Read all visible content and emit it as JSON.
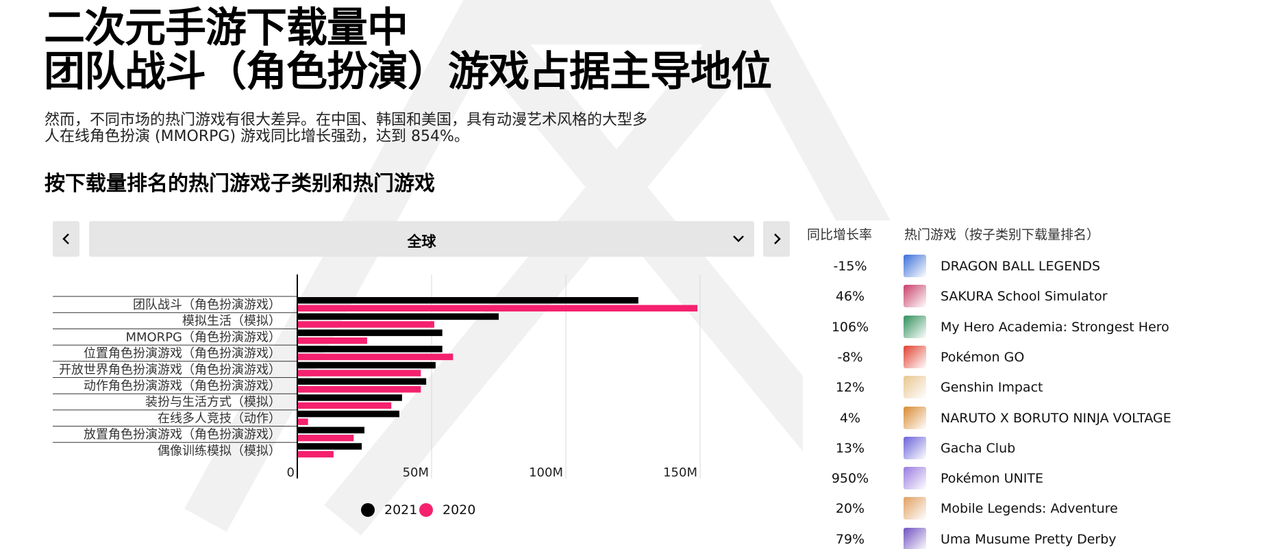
{
  "header": {
    "title_lines": [
      "二次元手游下载量中",
      "团队战斗（角色扮演）游戏占据主导地位"
    ],
    "subtitle_lines": [
      "然而，不同市场的热门游戏有很大差异。在中国、韩国和美国，具有动漫艺术风格的大型多",
      "人在线角色扮演 (MMORPG) 游戏同比增长强劲，达到 854%。"
    ],
    "section_title": "按下载量排名的热门游戏子类别和热门游戏"
  },
  "nav": {
    "region": "全球"
  },
  "chart_data": {
    "type": "bar",
    "orientation": "horizontal",
    "categories": [
      "团队战斗（角色扮演游戏）",
      "模拟生活（模拟）",
      "MMORPG（角色扮演游戏）",
      "位置角色扮演游戏（角色扮演游戏）",
      "开放世界角色扮演游戏（角色扮演游戏）",
      "动作角色扮演游戏（角色扮演游戏）",
      "装扮与生活方式（模拟）",
      "在线多人竞技（动作）",
      "放置角色扮演游戏（角色扮演游戏）",
      "偶像训练模拟（模拟）"
    ],
    "series": [
      {
        "name": "2021",
        "color": "#000000",
        "values": [
          127,
          75,
          54,
          54,
          51.5,
          48,
          39,
          38,
          25,
          24
        ]
      },
      {
        "name": "2020",
        "color": "#f5216e",
        "values": [
          149,
          51,
          26,
          58,
          46,
          46,
          35,
          4,
          21,
          13.5
        ]
      }
    ],
    "xlim": [
      0,
      150
    ],
    "xticks": [
      0,
      {
        "value": 50,
        "label": "50M"
      },
      {
        "value": 100,
        "label": "100M"
      },
      {
        "value": 150,
        "label": "150M"
      }
    ],
    "grid": true
  },
  "table": {
    "header": [
      "同比增长率",
      "热门游戏（按子类别下载量排名）"
    ],
    "rows": [
      [
        "-15%",
        "DRAGON BALL LEGENDS"
      ],
      [
        "46%",
        "SAKURA School Simulator"
      ],
      [
        "106%",
        "My Hero Academia: Strongest Hero"
      ],
      [
        "-8%",
        "Pokémon GO"
      ],
      [
        "12%",
        "Genshin Impact"
      ],
      [
        "4%",
        "NARUTO X BORUTO NINJA VOLTAGE"
      ],
      [
        "13%",
        "Gacha Club"
      ],
      [
        "950%",
        "Pokémon UNITE"
      ],
      [
        "20%",
        "Mobile Legends: Adventure"
      ],
      [
        "79%",
        "Uma Musume Pretty Derby"
      ]
    ]
  }
}
